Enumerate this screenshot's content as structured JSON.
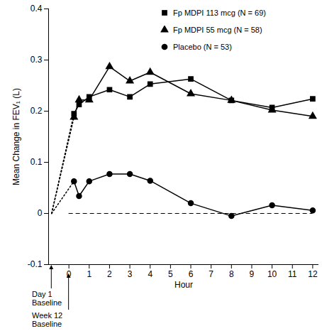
{
  "chart_data": {
    "type": "line",
    "x_label": "Hour",
    "y_label": "Mean Change in FEV₁ (L)",
    "x": [
      0.25,
      0.5,
      1,
      2,
      3,
      4,
      6,
      8,
      10,
      12
    ],
    "series": [
      {
        "name": "Fp MDPI 113 mcg (N = 69)",
        "color": "#000000",
        "marker": "square",
        "line_style": "solid",
        "values": [
          0.195,
          0.213,
          0.228,
          0.242,
          0.228,
          0.253,
          0.263,
          0.221,
          0.207,
          0.224
        ]
      },
      {
        "name": "Fp MDPI 55 mcg (N = 58)",
        "color": "#000000",
        "marker": "triangle",
        "line_style": "solid",
        "values": [
          0.188,
          0.222,
          0.222,
          0.287,
          0.259,
          0.276,
          0.234,
          0.221,
          0.202,
          0.19
        ]
      },
      {
        "name": "Placebo (N = 53)",
        "color": "#000000",
        "marker": "circle",
        "line_style": "solid",
        "values": [
          0.063,
          0.034,
          0.063,
          0.077,
          0.077,
          0.064,
          0.02,
          -0.005,
          0.016,
          0.006
        ]
      }
    ],
    "baseline": {
      "x": -0.85,
      "value": 0,
      "line_style": "dotted"
    },
    "reference_line": {
      "value": 0,
      "line_style": "dashed"
    },
    "annotations": [
      {
        "text": "Day 1\nBaseline",
        "x": -0.85
      },
      {
        "text": "Week 12\nBaseline",
        "x": 0
      }
    ],
    "xlim": [
      -1,
      12.3
    ],
    "xticks": [
      0,
      1,
      2,
      3,
      4,
      5,
      6,
      7,
      8,
      9,
      10,
      11,
      12
    ],
    "ylim": [
      -0.1,
      0.4
    ],
    "yticks": [
      -0.1,
      0,
      0.1,
      0.2,
      0.3,
      0.4
    ],
    "grid": false,
    "legend": "top-right"
  }
}
